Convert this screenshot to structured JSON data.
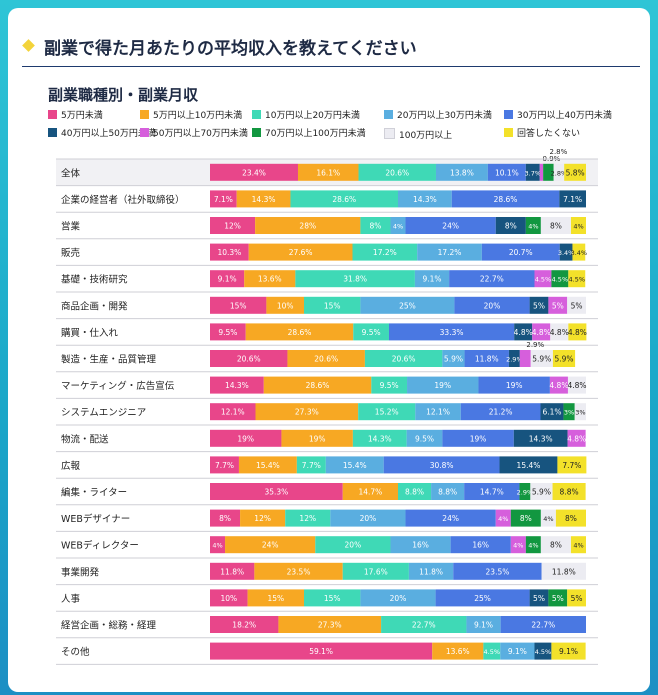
{
  "page": {
    "title": "副業で得た月あたりの平均収入を教えてください",
    "subtitle": "副業職種別・副業月収"
  },
  "legend": [
    {
      "label": "5万円未満",
      "color": "#e8468a"
    },
    {
      "label": "5万円以上10万円未満",
      "color": "#f7a823"
    },
    {
      "label": "10万円以上20万円未満",
      "color": "#3fd9b6"
    },
    {
      "label": "20万円以上30万円未満",
      "color": "#5aaee0"
    },
    {
      "label": "30万円以上40万円未満",
      "color": "#4a78e2"
    },
    {
      "label": "40万円以上50万円未満",
      "color": "#17547f"
    },
    {
      "label": "50万円以上70万円未満",
      "color": "#d65fdc"
    },
    {
      "label": "70万円以上100万円未満",
      "color": "#129740"
    },
    {
      "label": "100万円以上",
      "color": "#ececf2"
    },
    {
      "label": "回答したくない",
      "color": "#f3e12a"
    }
  ],
  "chart_data": {
    "type": "bar",
    "orientation": "horizontal-stacked-100",
    "title": "副業職種別・副業月収",
    "xlim": [
      0,
      100
    ],
    "categories": [
      "全体",
      "企業の経営者（社外取締役）",
      "営業",
      "販売",
      "基礎・技術研究",
      "商品企画・開発",
      "購買・仕入れ",
      "製造・生産・品質管理",
      "マーケティング・広告宣伝",
      "システムエンジニア",
      "物流・配送",
      "広報",
      "編集・ライター",
      "WEBデザイナー",
      "WEBディレクター",
      "事業開発",
      "人事",
      "経営企画・総務・経理",
      "その他"
    ],
    "series": [
      {
        "name": "5万円未満",
        "values": [
          23.4,
          7.1,
          12,
          10.3,
          9.1,
          15,
          9.5,
          20.6,
          14.3,
          12.1,
          19,
          7.7,
          35.3,
          8,
          4,
          11.8,
          10,
          18.2,
          59.1
        ]
      },
      {
        "name": "5万円以上10万円未満",
        "values": [
          16.1,
          14.3,
          28,
          27.6,
          13.6,
          10,
          28.6,
          20.6,
          28.6,
          27.3,
          19,
          15.4,
          14.7,
          12,
          24,
          23.5,
          15,
          27.3,
          13.6
        ]
      },
      {
        "name": "10万円以上20万円未満",
        "values": [
          20.6,
          28.6,
          8,
          17.2,
          31.8,
          15,
          9.5,
          20.6,
          9.5,
          15.2,
          14.3,
          7.7,
          8.8,
          12,
          20,
          17.6,
          15,
          22.7,
          4.5
        ]
      },
      {
        "name": "20万円以上30万円未満",
        "values": [
          13.8,
          14.3,
          4,
          17.2,
          9.1,
          25,
          0,
          5.9,
          19,
          12.1,
          9.5,
          15.4,
          8.8,
          20,
          16,
          11.8,
          20,
          9.1,
          9.1
        ]
      },
      {
        "name": "30万円以上40万円未満",
        "values": [
          10.1,
          28.6,
          24,
          20.7,
          22.7,
          20,
          33.3,
          11.8,
          19,
          21.2,
          19,
          30.8,
          14.7,
          24,
          16,
          23.5,
          25,
          22.7,
          0
        ]
      },
      {
        "name": "40万円以上50万円未満",
        "values": [
          3.7,
          7.1,
          8,
          3.4,
          0,
          5,
          4.8,
          2.9,
          0,
          6.1,
          14.3,
          15.4,
          0,
          0,
          0,
          0,
          5,
          0,
          4.5
        ]
      },
      {
        "name": "50万円以上70万円未満",
        "values": [
          0.9,
          0,
          0,
          0,
          4.5,
          5,
          4.8,
          2.9,
          4.8,
          0,
          4.8,
          0,
          0,
          4,
          4,
          0,
          0,
          0,
          0
        ]
      },
      {
        "name": "70万円以上100万円未満",
        "values": [
          2.8,
          0,
          4,
          0,
          4.5,
          0,
          0,
          0,
          0,
          3,
          0,
          0,
          2.9,
          8,
          4,
          0,
          5,
          0,
          0
        ]
      },
      {
        "name": "100万円以上",
        "values": [
          2.8,
          0,
          8,
          0,
          0,
          5,
          4.8,
          5.9,
          4.8,
          3,
          0,
          0,
          5.9,
          4,
          8,
          11.8,
          0,
          0,
          0
        ]
      },
      {
        "name": "回答したくない",
        "values": [
          5.8,
          0,
          4,
          3.4,
          4.5,
          0,
          4.8,
          5.9,
          0,
          0,
          0,
          7.7,
          8.8,
          8,
          4,
          0,
          5,
          0,
          9.1
        ]
      }
    ],
    "annotations": [
      {
        "category": "全体",
        "series": "50万円以上70万円未満",
        "text": "0.9%"
      },
      {
        "category": "全体",
        "series": "70万円以上100万円未満",
        "text": "2.8%"
      },
      {
        "category": "製造・生産・品質管理",
        "series": "50万円以上70万円未満",
        "text": "2.9%"
      }
    ]
  }
}
